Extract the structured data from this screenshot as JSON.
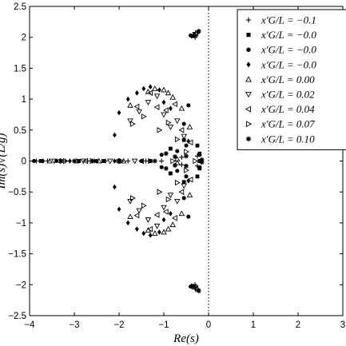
{
  "chart_data": {
    "type": "scatter",
    "xlabel": "Re(s)",
    "ylabel": "Im(s)√(L/g)",
    "xlim": [
      -4,
      3
    ],
    "ylim": [
      -2.5,
      2.5
    ],
    "xticks": [
      "−4",
      "−3",
      "−2",
      "−1",
      "0",
      "1",
      "2",
      "3"
    ],
    "yticks": [
      "2.5",
      "2",
      "1.5",
      "1",
      "0.5",
      "0",
      "−0.5",
      "−1",
      "−1.5",
      "−2",
      "−2.5"
    ],
    "grid": false,
    "legend_position": "top-right",
    "reference_line": {
      "x": 0,
      "style": "dotted"
    },
    "series": [
      {
        "name": "x′G/L = −0.1",
        "marker": "plus",
        "points": [
          [
            -3.85,
            0
          ],
          [
            -3.6,
            0
          ],
          [
            -3.2,
            0
          ],
          [
            -2.7,
            0
          ],
          [
            -2.3,
            0
          ],
          [
            -1.8,
            0
          ],
          [
            -1.4,
            0
          ],
          [
            -1.05,
            0
          ],
          [
            -0.6,
            0.06
          ],
          [
            -0.6,
            -0.06
          ],
          [
            -0.3,
            2.0
          ],
          [
            -0.3,
            -2.0
          ],
          [
            -0.25,
            0.08
          ],
          [
            -0.25,
            -0.08
          ]
        ]
      },
      {
        "name": "x′G/L = −0.0",
        "marker": "square",
        "points": [
          [
            -3.75,
            0
          ],
          [
            -3.3,
            0
          ],
          [
            -2.9,
            0
          ],
          [
            -2.35,
            0
          ],
          [
            -1.3,
            0
          ],
          [
            -0.85,
            0.2
          ],
          [
            -0.85,
            -0.2
          ],
          [
            -0.55,
            0.34
          ],
          [
            -0.55,
            -0.34
          ],
          [
            -0.35,
            2.02
          ],
          [
            -0.35,
            -2.02
          ],
          [
            -0.25,
            0.25
          ],
          [
            -0.25,
            -0.25
          ],
          [
            -0.2,
            0.12
          ],
          [
            -0.2,
            -0.12
          ],
          [
            -0.2,
            0
          ]
        ]
      },
      {
        "name": "x′G/L = −0.0",
        "marker": "circle",
        "points": [
          [
            -3.9,
            0
          ],
          [
            -3.4,
            0
          ],
          [
            -2.5,
            0
          ],
          [
            -2.0,
            0
          ],
          [
            -1.5,
            0
          ],
          [
            -1.05,
            0.1
          ],
          [
            -1.05,
            -0.1
          ],
          [
            -0.7,
            0.16
          ],
          [
            -0.7,
            -0.16
          ],
          [
            -0.5,
            0.25
          ],
          [
            -0.5,
            -0.25
          ],
          [
            -0.45,
            0.9
          ],
          [
            -0.45,
            -0.9
          ],
          [
            -0.55,
            0.6
          ],
          [
            -0.55,
            -0.6
          ],
          [
            -0.4,
            2.03
          ],
          [
            -0.4,
            -2.03
          ],
          [
            -0.2,
            0.1
          ],
          [
            -0.2,
            -0.1
          ]
        ]
      },
      {
        "name": "x′G/L = −0.0",
        "marker": "diamond",
        "points": [
          [
            -3.7,
            0
          ],
          [
            -3.1,
            0
          ],
          [
            -2.6,
            0
          ],
          [
            -2.1,
            0
          ],
          [
            -2.1,
            0.42
          ],
          [
            -2.1,
            -0.42
          ],
          [
            -2.0,
            0.78
          ],
          [
            -2.0,
            -0.78
          ],
          [
            -1.8,
            1.0
          ],
          [
            -1.8,
            -1.0
          ],
          [
            -1.6,
            1.1
          ],
          [
            -1.6,
            -1.1
          ],
          [
            -1.45,
            1.17
          ],
          [
            -1.45,
            -1.17
          ],
          [
            -1.3,
            1.2
          ],
          [
            -1.3,
            -1.2
          ],
          [
            -1.1,
            1.15
          ],
          [
            -1.1,
            -1.15
          ],
          [
            -1.0,
            0.95
          ],
          [
            -1.0,
            -0.95
          ],
          [
            -0.85,
            0.85
          ],
          [
            -0.85,
            -0.85
          ],
          [
            -0.45,
            0.32
          ],
          [
            -0.45,
            -0.32
          ],
          [
            -0.38,
            2.02
          ],
          [
            -0.38,
            -2.02
          ]
        ]
      },
      {
        "name": "x′G/L = 0.00",
        "marker": "triangle-up",
        "points": [
          [
            -3.55,
            0
          ],
          [
            -2.95,
            0
          ],
          [
            -2.45,
            0
          ],
          [
            -1.9,
            0
          ],
          [
            -1.75,
            0.9
          ],
          [
            -1.75,
            -0.9
          ],
          [
            -1.35,
            1.12
          ],
          [
            -1.35,
            -1.12
          ],
          [
            -1.2,
            1.17
          ],
          [
            -1.2,
            -1.17
          ],
          [
            -1.0,
            1.15
          ],
          [
            -1.0,
            -1.15
          ],
          [
            -0.9,
            1.1
          ],
          [
            -0.9,
            -1.1
          ],
          [
            -0.8,
            1.03
          ],
          [
            -0.8,
            -1.03
          ],
          [
            -0.6,
            0.85
          ],
          [
            -0.6,
            -0.85
          ],
          [
            -0.42,
            0.55
          ],
          [
            -0.42,
            -0.55
          ],
          [
            -0.32,
            2.04
          ],
          [
            -0.32,
            -2.04
          ],
          [
            -0.7,
            0.03
          ],
          [
            -0.7,
            -0.03
          ]
        ]
      },
      {
        "name": "x′G/L = 0.02",
        "marker": "triangle-down",
        "points": [
          [
            -3.45,
            0
          ],
          [
            -2.8,
            0
          ],
          [
            -2.2,
            0
          ],
          [
            -1.65,
            0
          ],
          [
            -1.75,
            0.65
          ],
          [
            -1.75,
            -0.65
          ],
          [
            -1.55,
            0.8
          ],
          [
            -1.55,
            -0.8
          ],
          [
            -1.35,
            0.95
          ],
          [
            -1.35,
            -0.95
          ],
          [
            -1.15,
            1.05
          ],
          [
            -1.15,
            -1.05
          ],
          [
            -1.0,
            0.75
          ],
          [
            -1.0,
            -0.75
          ],
          [
            -0.85,
            0.55
          ],
          [
            -0.85,
            -0.55
          ],
          [
            -0.7,
            0.65
          ],
          [
            -0.7,
            -0.65
          ],
          [
            -0.55,
            0.4
          ],
          [
            -0.55,
            -0.4
          ],
          [
            -0.3,
            2.05
          ],
          [
            -0.3,
            -2.05
          ]
        ]
      },
      {
        "name": "x′G/L = 0.04",
        "marker": "triangle-left",
        "points": [
          [
            -3.35,
            0
          ],
          [
            -2.75,
            0
          ],
          [
            -2.05,
            0
          ],
          [
            -1.5,
            0
          ],
          [
            -1.6,
            0.88
          ],
          [
            -1.6,
            -0.88
          ],
          [
            -1.3,
            1.1
          ],
          [
            -1.3,
            -1.1
          ],
          [
            -1.15,
            0.87
          ],
          [
            -1.15,
            -0.87
          ],
          [
            -0.95,
            0.82
          ],
          [
            -0.95,
            -0.82
          ],
          [
            -0.75,
            0.92
          ],
          [
            -0.75,
            -0.92
          ],
          [
            -0.6,
            0.5
          ],
          [
            -0.6,
            -0.5
          ],
          [
            -0.4,
            0.3
          ],
          [
            -0.4,
            -0.3
          ],
          [
            -0.28,
            2.06
          ],
          [
            -0.28,
            -2.06
          ]
        ]
      },
      {
        "name": "x′G/L = 0.07",
        "marker": "triangle-right",
        "points": [
          [
            -3.2,
            0
          ],
          [
            -2.6,
            0
          ],
          [
            -1.95,
            0
          ],
          [
            -1.3,
            0
          ],
          [
            -1.7,
            0.6
          ],
          [
            -1.7,
            -0.6
          ],
          [
            -1.45,
            0.72
          ],
          [
            -1.45,
            -0.72
          ],
          [
            -1.1,
            0.5
          ],
          [
            -1.1,
            -0.5
          ],
          [
            -0.9,
            0.62
          ],
          [
            -0.9,
            -0.62
          ],
          [
            -0.7,
            0.35
          ],
          [
            -0.7,
            -0.35
          ],
          [
            -0.5,
            0.15
          ],
          [
            -0.5,
            -0.15
          ],
          [
            -0.25,
            2.07
          ],
          [
            -0.25,
            -2.07
          ],
          [
            -0.8,
            0
          ],
          [
            -0.3,
            0
          ]
        ]
      },
      {
        "name": "x′G/L = 0.10",
        "marker": "star",
        "points": [
          [
            -3.0,
            0
          ],
          [
            -2.55,
            0
          ],
          [
            -2.0,
            0
          ],
          [
            -1.2,
            0
          ],
          [
            -0.95,
            0.12
          ],
          [
            -0.95,
            -0.12
          ],
          [
            -0.75,
            0.07
          ],
          [
            -0.75,
            -0.07
          ],
          [
            -0.5,
            0.08
          ],
          [
            -0.5,
            -0.08
          ],
          [
            -0.22,
            2.1
          ],
          [
            -0.22,
            -2.1
          ],
          [
            -0.15,
            0.02
          ],
          [
            -0.15,
            -0.02
          ]
        ]
      }
    ]
  }
}
